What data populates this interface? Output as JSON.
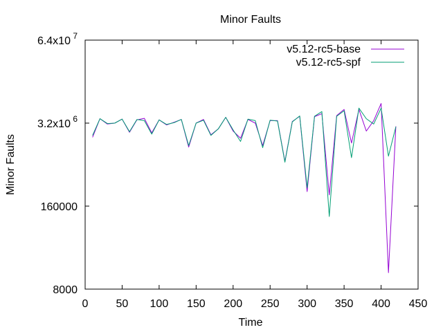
{
  "chart_data": {
    "type": "line",
    "title": "Minor Faults",
    "xlabel": "Time",
    "ylabel": "Minor Faults",
    "xlim": [
      0,
      450
    ],
    "y_scale": "log",
    "ylim": [
      8000,
      64000000
    ],
    "x_ticks": [
      0,
      50,
      100,
      150,
      200,
      250,
      300,
      350,
      400,
      450
    ],
    "y_ticks": [
      {
        "value": 8000,
        "mantissa": "8000",
        "exponent": ""
      },
      {
        "value": 160000,
        "mantissa": "160000",
        "exponent": ""
      },
      {
        "value": 3200000,
        "mantissa": "3.2x10",
        "exponent": "6"
      },
      {
        "value": 64000000,
        "mantissa": "6.4x10",
        "exponent": "7"
      }
    ],
    "grid": false,
    "legend_position": "top-right",
    "x": [
      10,
      20,
      30,
      40,
      50,
      60,
      70,
      80,
      90,
      100,
      110,
      120,
      130,
      140,
      150,
      160,
      170,
      180,
      190,
      200,
      210,
      220,
      230,
      240,
      250,
      260,
      270,
      280,
      290,
      300,
      310,
      320,
      330,
      340,
      350,
      360,
      370,
      380,
      390,
      400,
      410,
      420
    ],
    "series": [
      {
        "name": "v5.12-rc5-base",
        "color": "#9400d3",
        "values": [
          1920000,
          3750000,
          3100000,
          3200000,
          3700000,
          2300000,
          3600000,
          3800000,
          2250000,
          3600000,
          3000000,
          3300000,
          3650000,
          1350000,
          3200000,
          3650000,
          2100000,
          2600000,
          3950000,
          2400000,
          1850000,
          3650000,
          3200000,
          1420000,
          3500000,
          3500000,
          800000,
          3400000,
          4100000,
          270000,
          4050000,
          4500000,
          240000,
          4200000,
          5250000,
          1560000,
          5250000,
          2400000,
          3500000,
          6500000,
          14500,
          2850000
        ]
      },
      {
        "name": "v5.12-rc5-spf",
        "color": "#009e73",
        "values": [
          2050000,
          3750000,
          3150000,
          3200000,
          3700000,
          2350000,
          3650000,
          3500000,
          2150000,
          3600000,
          3050000,
          3250000,
          3650000,
          1420000,
          3200000,
          3550000,
          2050000,
          2600000,
          3950000,
          2500000,
          1650000,
          3700000,
          3500000,
          1320000,
          3550000,
          3450000,
          780000,
          3350000,
          4150000,
          310000,
          4100000,
          4850000,
          110000,
          4100000,
          5000000,
          920000,
          5500000,
          3750000,
          3100000,
          5500000,
          970000,
          2800000
        ]
      }
    ]
  }
}
